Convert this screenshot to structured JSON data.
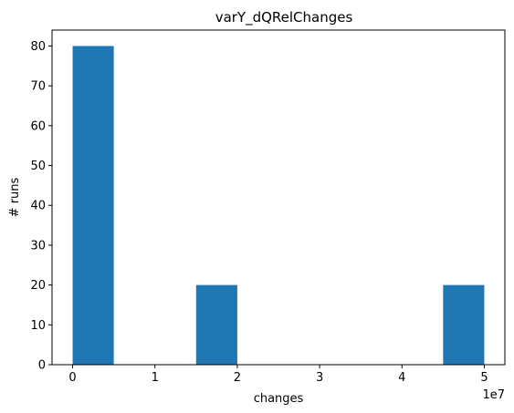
{
  "chart_data": {
    "type": "bar",
    "title": "varY_dQRelChanges",
    "xlabel": "changes",
    "ylabel": "# runs",
    "x_offset_label": "1e7",
    "bins": [
      {
        "start": 0.0,
        "end": 0.5,
        "count": 80
      },
      {
        "start": 0.5,
        "end": 1.0,
        "count": 0
      },
      {
        "start": 1.0,
        "end": 1.5,
        "count": 0
      },
      {
        "start": 1.5,
        "end": 2.0,
        "count": 20
      },
      {
        "start": 2.0,
        "end": 2.5,
        "count": 0
      },
      {
        "start": 2.5,
        "end": 3.0,
        "count": 0
      },
      {
        "start": 3.0,
        "end": 3.5,
        "count": 0
      },
      {
        "start": 3.5,
        "end": 4.0,
        "count": 0
      },
      {
        "start": 4.0,
        "end": 4.5,
        "count": 0
      },
      {
        "start": 4.5,
        "end": 5.0,
        "count": 20
      }
    ],
    "xlim": [
      -0.25,
      5.25
    ],
    "ylim": [
      0,
      84
    ],
    "xticks": [
      0,
      1,
      2,
      3,
      4,
      5
    ],
    "xtick_labels": [
      "0",
      "1",
      "2",
      "3",
      "4",
      "5"
    ],
    "yticks": [
      0,
      10,
      20,
      30,
      40,
      50,
      60,
      70,
      80
    ],
    "ytick_labels": [
      "0",
      "10",
      "20",
      "30",
      "40",
      "50",
      "60",
      "70",
      "80"
    ],
    "bar_color": "#1f77b4",
    "grid": false,
    "legend": "none"
  }
}
